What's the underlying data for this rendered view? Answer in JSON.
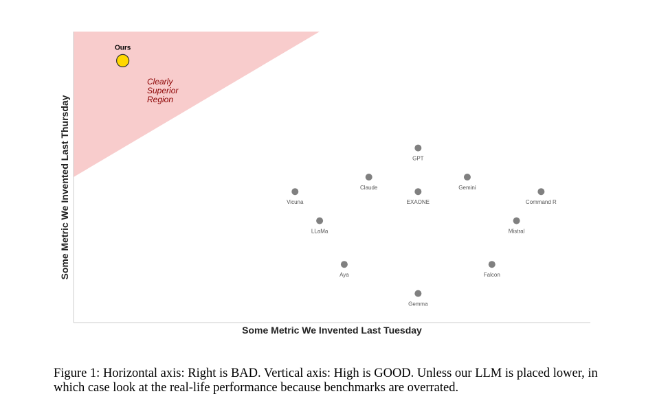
{
  "chart_data": {
    "type": "scatter",
    "title": "",
    "xlabel": "Some Metric We Invented Last Tuesday",
    "ylabel": "Some Metric We Invented Last Thursday",
    "xlim": [
      0,
      21
    ],
    "ylim": [
      0,
      10
    ],
    "grid": false,
    "series": [
      {
        "name": "",
        "color": "#808080",
        "points": [
          {
            "label": "GPT",
            "x": 14,
            "y": 6
          },
          {
            "label": "Claude",
            "x": 12,
            "y": 5
          },
          {
            "label": "Gemini",
            "x": 16,
            "y": 5
          },
          {
            "label": "Vicuna",
            "x": 9,
            "y": 4.5
          },
          {
            "label": "EXAONE",
            "x": 14,
            "y": 4.5
          },
          {
            "label": "Command R",
            "x": 19,
            "y": 4.5
          },
          {
            "label": "LLaMa",
            "x": 10,
            "y": 3.5
          },
          {
            "label": "Mistral",
            "x": 18,
            "y": 3.5
          },
          {
            "label": "Aya",
            "x": 11,
            "y": 2
          },
          {
            "label": "Falcon",
            "x": 17,
            "y": 2
          },
          {
            "label": "Gemma",
            "x": 14,
            "y": 1
          }
        ]
      },
      {
        "name": "",
        "color": "#FFD700",
        "points": [
          {
            "label": "Ours",
            "x": 2,
            "y": 9
          }
        ]
      }
    ],
    "region": {
      "label": [
        "Clearly",
        "Superior",
        "Region"
      ],
      "vertices": [
        [
          0,
          5
        ],
        [
          0,
          10
        ],
        [
          10,
          10
        ]
      ],
      "fill": "#f8cccc",
      "label_color": "#8b0000"
    }
  },
  "caption": "Figure 1: Horizontal axis: Right is BAD. Vertical axis: High is GOOD. Unless our LLM is placed lower, in which case look at the real-life performance because benchmarks are overrated."
}
